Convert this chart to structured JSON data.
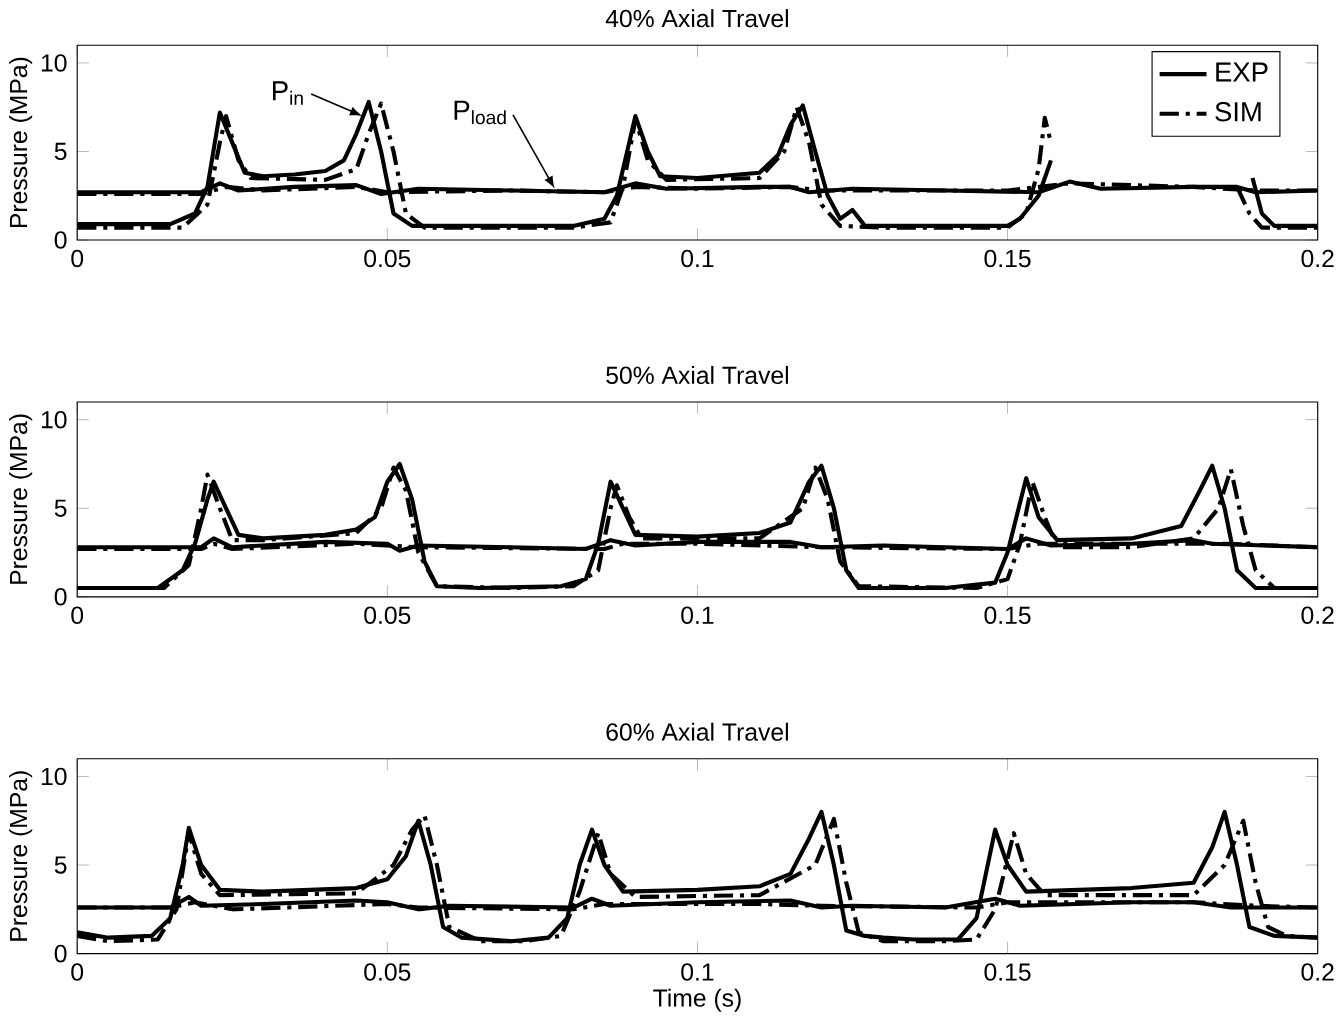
{
  "chart_data": [
    {
      "type": "line",
      "title": "40% Axial Travel",
      "ylabel": "Pressure (MPa)",
      "xlim": [
        0,
        0.2
      ],
      "ylim": [
        0,
        11
      ],
      "xticks": [
        0,
        0.05,
        0.1,
        0.15,
        0.2
      ],
      "yticks": [
        0,
        5,
        10
      ],
      "legend": "top right",
      "annotations": [
        {
          "text": "P$_{in}$",
          "x": 0.046,
          "y": 7.0
        },
        {
          "text": "P$_{load}$",
          "x": 0.077,
          "y": 2.9
        }
      ],
      "series": [
        {
          "name": "EXP",
          "color": "#000000",
          "line_style": "solid",
          "x": [
            0,
            0.015,
            0.019,
            0.021,
            0.023,
            0.025,
            0.027,
            0.03,
            0.035,
            0.04,
            0.043,
            0.045,
            0.047,
            0.049,
            0.051,
            0.054,
            0.06,
            0.07,
            0.08,
            0.085,
            0.087,
            0.089,
            0.09,
            0.092,
            0.094,
            0.1,
            0.11,
            0.113,
            0.115,
            0.117,
            0.119,
            0.121,
            0.123,
            0.125,
            0.127,
            0.14,
            0.15,
            0.152,
            0.155,
            0.157,
            0.17,
            0.1895,
            0.191,
            0.193,
            0.2
          ],
          "values": [
            0.9,
            0.9,
            1.5,
            3,
            7.2,
            5.5,
            3.8,
            3.6,
            3.7,
            3.9,
            4.5,
            6,
            7.8,
            5,
            1.5,
            0.8,
            0.8,
            0.8,
            0.8,
            1.2,
            2.5,
            5.5,
            7,
            5,
            3.6,
            3.5,
            3.8,
            4.8,
            6.5,
            7.6,
            5,
            2.5,
            1.2,
            1.7,
            0.8,
            0.8,
            0.8,
            1.2,
            2.5,
            4.5,
            null,
            3.5,
            1.5,
            0.8,
            0.8
          ]
        },
        {
          "name": "SIM",
          "color": "#000000",
          "line_style": "dashdot",
          "x": [
            0,
            0.017,
            0.021,
            0.023,
            0.024,
            0.026,
            0.028,
            0.04,
            0.045,
            0.047,
            0.049,
            0.051,
            0.053,
            0.056,
            0.08,
            0.086,
            0.088,
            0.09,
            0.092,
            0.095,
            0.11,
            0.114,
            0.116,
            0.118,
            0.12,
            0.123,
            0.13,
            0.15,
            0.153,
            0.155,
            0.156,
            0.157,
            0.17,
            0.187,
            0.189,
            0.191,
            0.2
          ],
          "values": [
            0.7,
            0.7,
            2,
            5.5,
            7,
            4.5,
            3.5,
            3.4,
            4,
            6,
            7.7,
            5,
            1.5,
            0.7,
            0.7,
            1,
            3,
            6.8,
            4.5,
            3.4,
            3.5,
            5,
            7.5,
            5.5,
            2,
            0.8,
            0.7,
            0.7,
            1.5,
            4,
            6.9,
            5.5,
            null,
            3.0,
            1.5,
            0.7,
            0.7
          ]
        },
        {
          "color": "#000000",
          "line_style": "solid",
          "x": [
            0,
            0.02,
            0.023,
            0.026,
            0.035,
            0.045,
            0.049,
            0.055,
            0.07,
            0.085,
            0.09,
            0.095,
            0.11,
            0.115,
            0.118,
            0.125,
            0.14,
            0.155,
            0.16,
            0.165,
            0.18,
            0.187,
            0.19,
            0.2
          ],
          "values": [
            2.7,
            2.7,
            3.2,
            2.8,
            3.0,
            3.1,
            2.6,
            2.9,
            2.8,
            2.7,
            3.2,
            2.9,
            3.0,
            3.0,
            2.7,
            2.9,
            2.8,
            2.7,
            3.3,
            2.9,
            3.0,
            3.0,
            2.7,
            2.8
          ]
        },
        {
          "color": "#000000",
          "line_style": "dashdot",
          "x": [
            0,
            0.02,
            0.024,
            0.03,
            0.045,
            0.05,
            0.07,
            0.085,
            0.09,
            0.1,
            0.115,
            0.12,
            0.15,
            0.16,
            0.18,
            0.19,
            0.2
          ],
          "values": [
            2.6,
            2.6,
            3.0,
            2.8,
            3.0,
            2.7,
            2.8,
            2.7,
            3.0,
            2.9,
            3.0,
            2.8,
            2.8,
            3.2,
            3.0,
            2.8,
            2.8
          ]
        }
      ]
    },
    {
      "type": "line",
      "title": "50% Axial Travel",
      "ylabel": "Pressure (MPa)",
      "xlim": [
        0,
        0.2
      ],
      "ylim": [
        0,
        11
      ],
      "xticks": [
        0,
        0.05,
        0.1,
        0.15,
        0.2
      ],
      "yticks": [
        0,
        5,
        10
      ],
      "series": [
        {
          "color": "#000000",
          "line_style": "solid",
          "x": [
            0,
            0.013,
            0.017,
            0.019,
            0.021,
            0.022,
            0.024,
            0.026,
            0.03,
            0.04,
            0.045,
            0.048,
            0.05,
            0.052,
            0.054,
            0.056,
            0.058,
            0.065,
            0.078,
            0.082,
            0.084,
            0.086,
            0.088,
            0.09,
            0.1,
            0.11,
            0.115,
            0.118,
            0.12,
            0.122,
            0.124,
            0.126,
            0.14,
            0.148,
            0.15,
            0.153,
            0.155,
            0.158,
            0.17,
            0.178,
            0.181,
            0.183,
            0.185,
            0.187,
            0.19,
            0.2
          ],
          "values": [
            0.5,
            0.5,
            1.5,
            3,
            5.5,
            6.5,
            5,
            3.5,
            3.3,
            3.5,
            3.8,
            4.5,
            6.5,
            7.5,
            5.5,
            2,
            0.6,
            0.5,
            0.6,
            1,
            3,
            6.5,
            5,
            3.5,
            3.4,
            3.6,
            4.2,
            6.5,
            7.4,
            5,
            1.5,
            0.5,
            0.5,
            0.8,
            2.5,
            6.7,
            4.5,
            3.2,
            3.3,
            4,
            6,
            7.4,
            5,
            1.5,
            0.5,
            0.5
          ]
        },
        {
          "color": "#000000",
          "line_style": "dashdot",
          "x": [
            0,
            0.014,
            0.018,
            0.02,
            0.021,
            0.023,
            0.025,
            0.03,
            0.045,
            0.049,
            0.051,
            0.053,
            0.055,
            0.058,
            0.07,
            0.08,
            0.084,
            0.086,
            0.087,
            0.089,
            0.091,
            0.11,
            0.117,
            0.119,
            0.121,
            0.123,
            0.126,
            0.145,
            0.15,
            0.152,
            0.154,
            0.156,
            0.158,
            0.17,
            0.18,
            0.184,
            0.186,
            0.188,
            0.19,
            0.193,
            0.2
          ],
          "values": [
            0.5,
            0.5,
            1.8,
            5,
            6.9,
            5,
            3.2,
            3.2,
            3.6,
            5,
            7.3,
            6,
            2.5,
            0.6,
            0.5,
            0.6,
            1.5,
            5,
            6.3,
            4.5,
            3.3,
            3.3,
            5,
            7.3,
            5.5,
            2,
            0.6,
            0.5,
            1,
            3,
            6.5,
            4.5,
            2.8,
            2.8,
            3.3,
            5,
            7.2,
            4,
            1.5,
            0.5,
            0.5
          ]
        },
        {
          "color": "#000000",
          "line_style": "solid",
          "x": [
            0,
            0.02,
            0.022,
            0.025,
            0.04,
            0.05,
            0.052,
            0.055,
            0.07,
            0.082,
            0.086,
            0.09,
            0.1,
            0.115,
            0.12,
            0.13,
            0.15,
            0.153,
            0.157,
            0.17,
            0.18,
            0.183,
            0.2
          ],
          "values": [
            2.8,
            2.8,
            3.3,
            2.8,
            3.1,
            3.0,
            2.6,
            2.9,
            2.8,
            2.7,
            3.2,
            2.9,
            3.1,
            3.1,
            2.8,
            2.9,
            2.7,
            3.3,
            2.9,
            3.0,
            3.2,
            3.0,
            2.8
          ]
        },
        {
          "color": "#000000",
          "line_style": "dashdot",
          "x": [
            0,
            0.02,
            0.022,
            0.025,
            0.045,
            0.055,
            0.085,
            0.088,
            0.1,
            0.12,
            0.15,
            0.155,
            0.17,
            0.185,
            0.2
          ],
          "values": [
            2.7,
            2.7,
            3.0,
            2.7,
            3.0,
            2.8,
            2.7,
            3.0,
            3.0,
            2.8,
            2.7,
            3.0,
            3.0,
            3.0,
            2.8
          ]
        }
      ]
    },
    {
      "type": "line",
      "title": "60% Axial Travel",
      "xlabel": "Time (s)",
      "ylabel": "Pressure (MPa)",
      "xlim": [
        0,
        0.2
      ],
      "ylim": [
        0,
        11
      ],
      "xticks": [
        0,
        0.05,
        0.1,
        0.15,
        0.2
      ],
      "yticks": [
        0,
        5,
        10
      ],
      "series": [
        {
          "color": "#000000",
          "line_style": "solid",
          "x": [
            0,
            0.005,
            0.012,
            0.015,
            0.017,
            0.018,
            0.02,
            0.023,
            0.03,
            0.045,
            0.05,
            0.053,
            0.055,
            0.057,
            0.059,
            0.062,
            0.07,
            0.076,
            0.079,
            0.081,
            0.083,
            0.085,
            0.088,
            0.1,
            0.11,
            0.115,
            0.118,
            0.12,
            0.122,
            0.124,
            0.127,
            0.13,
            0.135,
            0.142,
            0.145,
            0.148,
            0.15,
            0.153,
            0.17,
            0.18,
            0.183,
            0.185,
            0.187,
            0.189,
            0.193,
            0.2
          ],
          "values": [
            1.2,
            0.9,
            1.0,
            2,
            5,
            7.1,
            5,
            3.6,
            3.5,
            3.7,
            4.2,
            5.5,
            7.5,
            5,
            1.5,
            0.9,
            0.7,
            0.9,
            2,
            5,
            7,
            5,
            3.5,
            3.6,
            3.8,
            4.5,
            6.5,
            8,
            5,
            1.3,
            1.0,
            0.9,
            0.8,
            0.8,
            2,
            7,
            5,
            3.5,
            3.7,
            4,
            6,
            8,
            5,
            1.5,
            1.0,
            0.9
          ]
        },
        {
          "color": "#000000",
          "line_style": "dashdot",
          "x": [
            0,
            0.005,
            0.013,
            0.016,
            0.018,
            0.02,
            0.023,
            0.045,
            0.051,
            0.054,
            0.056,
            0.058,
            0.06,
            0.065,
            0.072,
            0.078,
            0.081,
            0.084,
            0.086,
            0.09,
            0.11,
            0.119,
            0.122,
            0.124,
            0.126,
            0.13,
            0.14,
            0.145,
            0.148,
            0.151,
            0.153,
            0.156,
            0.18,
            0.185,
            0.188,
            0.19,
            0.192,
            0.195,
            0.2
          ],
          "values": [
            1.0,
            0.7,
            0.8,
            2.5,
            6.8,
            4.5,
            3.3,
            3.4,
            5,
            7,
            7.8,
            5,
            1.5,
            0.7,
            0.7,
            1,
            3.5,
            6.8,
            4.5,
            3.2,
            3.3,
            5,
            7.6,
            4,
            1.2,
            0.7,
            0.7,
            0.8,
            2.5,
            6.8,
            4.5,
            3.3,
            3.3,
            5,
            7.5,
            4,
            1.5,
            1.0,
            0.9
          ]
        },
        {
          "color": "#000000",
          "line_style": "solid",
          "x": [
            0,
            0.015,
            0.018,
            0.02,
            0.03,
            0.045,
            0.05,
            0.055,
            0.06,
            0.08,
            0.083,
            0.086,
            0.1,
            0.115,
            0.12,
            0.125,
            0.14,
            0.148,
            0.152,
            0.17,
            0.18,
            0.186,
            0.2
          ],
          "values": [
            2.6,
            2.6,
            3.2,
            2.7,
            2.8,
            3.0,
            2.9,
            2.5,
            2.7,
            2.6,
            3.1,
            2.7,
            2.9,
            3.0,
            2.6,
            2.7,
            2.6,
            3.1,
            2.7,
            2.9,
            2.9,
            2.6,
            2.6
          ]
        },
        {
          "color": "#000000",
          "line_style": "dashdot",
          "x": [
            0,
            0.015,
            0.019,
            0.025,
            0.05,
            0.055,
            0.08,
            0.085,
            0.11,
            0.12,
            0.145,
            0.15,
            0.18,
            0.19,
            0.2
          ],
          "values": [
            2.6,
            2.6,
            2.9,
            2.5,
            2.8,
            2.6,
            2.5,
            2.8,
            2.8,
            2.7,
            2.6,
            2.9,
            2.9,
            2.7,
            2.6
          ]
        }
      ]
    }
  ]
}
